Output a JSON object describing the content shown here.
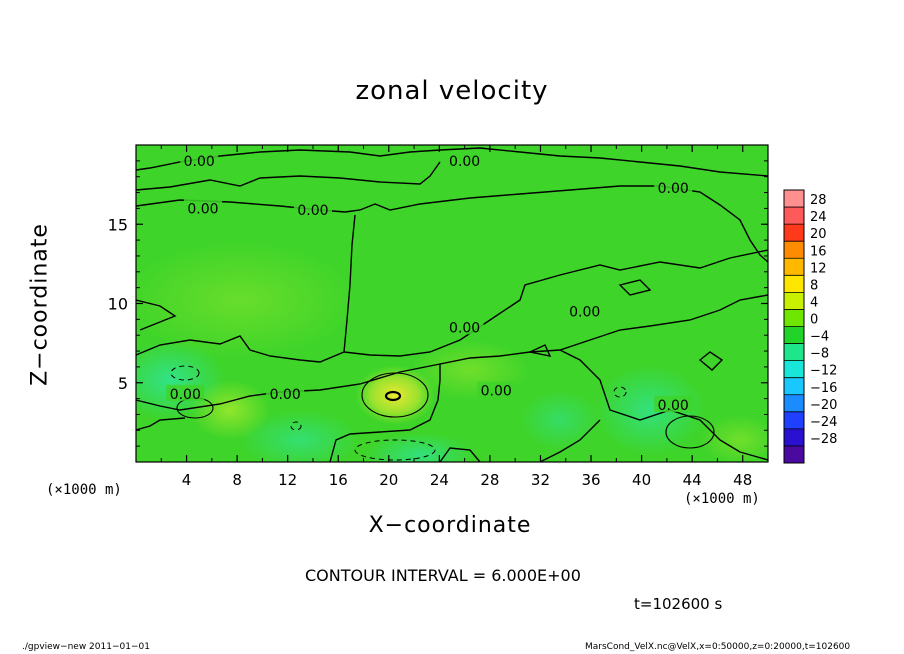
{
  "header": {
    "title": "zonal velocity"
  },
  "axes": {
    "xlabel": "X−coordinate",
    "ylabel": "Z−coordinate",
    "xunit_left": "(×1000 m)",
    "xunit_right": "(×1000 m)"
  },
  "notes": {
    "contour_interval": "CONTOUR INTERVAL = 6.000E+00",
    "time": "t=102600 s",
    "footer_left": "./gpview−new   2011−01−01",
    "footer_right": "MarsCond_VelX.nc@VelX,x=0:50000,z=0:20000,t=102600"
  },
  "colors": {
    "field_base": "#3ed42a",
    "field_light": "#8ee82c",
    "field_cyan": "#2ee6a0",
    "field_yellow": "#d8e830",
    "contour": "#000000"
  },
  "chart_data": {
    "type": "heatmap",
    "title": "zonal velocity",
    "xlabel": "X−coordinate",
    "ylabel": "Z−coordinate",
    "xlim": [
      0,
      50
    ],
    "ylim": [
      0,
      20
    ],
    "x_ticks": [
      4,
      8,
      12,
      16,
      20,
      24,
      28,
      32,
      36,
      40,
      44,
      48
    ],
    "y_ticks": [
      5,
      10,
      15
    ],
    "contour_interval": 6.0,
    "contour_labels": [
      {
        "text": "0.00",
        "x": 5.0,
        "y": 19.0
      },
      {
        "text": "0.00",
        "x": 26.0,
        "y": 19.0
      },
      {
        "text": "0.00",
        "x": 42.5,
        "y": 17.3
      },
      {
        "text": "0.00",
        "x": 5.3,
        "y": 16.0
      },
      {
        "text": "0.00",
        "x": 14.0,
        "y": 15.9
      },
      {
        "text": "0.00",
        "x": 26.0,
        "y": 8.5
      },
      {
        "text": "0.00",
        "x": 35.5,
        "y": 9.5
      },
      {
        "text": "0.00",
        "x": 3.9,
        "y": 4.3
      },
      {
        "text": "0.00",
        "x": 11.8,
        "y": 4.3
      },
      {
        "text": "0.00",
        "x": 28.5,
        "y": 4.5
      },
      {
        "text": "0.00",
        "x": 42.5,
        "y": 3.6
      }
    ],
    "colorbar": {
      "levels": [
        "28",
        "24",
        "20",
        "16",
        "12",
        "8",
        "4",
        "0",
        "−4",
        "−8",
        "−12",
        "−16",
        "−20",
        "−24",
        "−28"
      ],
      "colors": [
        "#ff9090",
        "#ff5a5a",
        "#ff3a1a",
        "#ff8c00",
        "#ffb800",
        "#ffe600",
        "#c8f000",
        "#6ee600",
        "#22d42a",
        "#1ee68a",
        "#19e6d8",
        "#19c8ff",
        "#1a8cff",
        "#2040ff",
        "#2a10d0",
        "#4a0aa0"
      ]
    }
  }
}
